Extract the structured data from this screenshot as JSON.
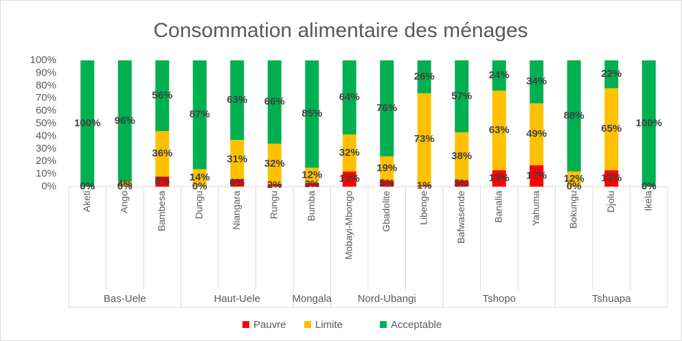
{
  "chart_data": {
    "type": "bar",
    "stacking": "percent",
    "title": "Consommation alimentaire des ménages",
    "categories": [
      "Aketi",
      "Ango",
      "Bambesa",
      "Dungu",
      "Niangara",
      "Rungu",
      "Bumba",
      "Mobayi-Mbongo",
      "Gbadolite",
      "Libenge",
      "Bafwasende",
      "Banalia",
      "Yahuma",
      "Bokungu",
      "Djolu",
      "Ikela"
    ],
    "category_groups": [
      "Bas-Uele",
      "Bas-Uele",
      "Bas-Uele",
      "Haut-Uele",
      "Haut-Uele",
      "Haut-Uele",
      "Mongala",
      "Nord-Ubangi",
      "Nord-Ubangi",
      "Nord-Ubangi",
      "Tshopo",
      "Tshopo",
      "Tshopo",
      "Tshuapa",
      "Tshuapa",
      "Tshuapa"
    ],
    "series": [
      {
        "name": "Pauvre",
        "color": "#ff0000",
        "values": [
          0,
          0,
          8,
          0,
          6,
          2,
          3,
          13,
          5,
          1,
          5,
          13,
          17,
          0,
          13,
          0
        ],
        "value_labels": [
          "0%",
          "0%",
          "8%",
          "0%",
          "6%",
          "2%",
          "3%",
          "13%",
          "5%",
          "1%",
          "5%",
          "13%",
          "17%",
          "0%",
          "13%",
          "0%"
        ]
      },
      {
        "name": "Limite",
        "color": "#ffc000",
        "values": [
          0,
          4,
          36,
          14,
          31,
          32,
          12,
          32,
          19,
          73,
          38,
          63,
          49,
          12,
          65,
          0
        ],
        "value_labels": [
          "0%",
          "4%",
          "36%",
          "14%",
          "31%",
          "32%",
          "12%",
          "32%",
          "19%",
          "73%",
          "38%",
          "63%",
          "49%",
          "12%",
          "65%",
          "0%"
        ]
      },
      {
        "name": "Acceptable",
        "color": "#00b050",
        "values": [
          100,
          96,
          56,
          87,
          63,
          66,
          85,
          64,
          76,
          26,
          57,
          24,
          34,
          88,
          22,
          100
        ],
        "value_labels": [
          "100%",
          "96%",
          "56%",
          "87%",
          "63%",
          "66%",
          "85%",
          "64%",
          "76%",
          "26%",
          "57%",
          "24%",
          "34%",
          "88%",
          "22%",
          "100%"
        ]
      }
    ],
    "ylim": [
      0,
      100
    ],
    "yticks": [
      {
        "value": 0,
        "label": "0%"
      },
      {
        "value": 10,
        "label": "10%"
      },
      {
        "value": 20,
        "label": "20%"
      },
      {
        "value": 30,
        "label": "30%"
      },
      {
        "value": 40,
        "label": "40%"
      },
      {
        "value": 50,
        "label": "50%"
      },
      {
        "value": 60,
        "label": "60%"
      },
      {
        "value": 70,
        "label": "70%"
      },
      {
        "value": 80,
        "label": "80%"
      },
      {
        "value": 90,
        "label": "90%"
      },
      {
        "value": 100,
        "label": "100%"
      }
    ],
    "legend": "bottom"
  }
}
